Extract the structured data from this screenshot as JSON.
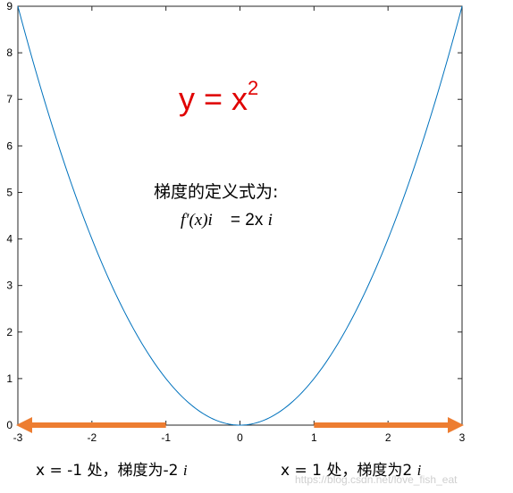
{
  "chart_data": {
    "type": "line",
    "x": [
      -3,
      -2.5,
      -2,
      -1.5,
      -1,
      -0.5,
      0,
      0.5,
      1,
      1.5,
      2,
      2.5,
      3
    ],
    "series": [
      {
        "values": [
          9,
          6.25,
          4,
          2.25,
          1,
          0.25,
          0,
          0.25,
          1,
          2.25,
          4,
          6.25,
          9
        ],
        "color": "#0072bd"
      }
    ],
    "xlim": [
      -3,
      3
    ],
    "ylim": [
      0,
      9
    ],
    "xticks": [
      "-3",
      "-2",
      "-1",
      "0",
      "1",
      "2",
      "3"
    ],
    "yticks": [
      "0",
      "1",
      "2",
      "3",
      "4",
      "5",
      "6",
      "7",
      "8",
      "9"
    ],
    "grid": false,
    "arrows": [
      {
        "from": -1,
        "to": -3,
        "color": "#ed7d31"
      },
      {
        "from": 1,
        "to": 3,
        "color": "#ed7d31"
      }
    ]
  },
  "annotations": {
    "title_prefix": "y = x",
    "title_exp": "2",
    "title_color": "#e00000",
    "definition_label": "梯度的定义式为:",
    "definition_formula_f": "f",
    "definition_formula_prime": "′",
    "definition_formula_x": "(x)",
    "definition_formula_i": "i⃗",
    "definition_formula_rhs": " = 2x ",
    "definition_formula_i2": "i⃗",
    "left_note_text": "x = -1 处，梯度为-2 ",
    "left_note_vec": "i⃗",
    "right_note_text": "x = 1 处，梯度为2 ",
    "right_note_vec": "i⃗",
    "watermark": "https://blog.csdn.net/love_fish_eat"
  }
}
